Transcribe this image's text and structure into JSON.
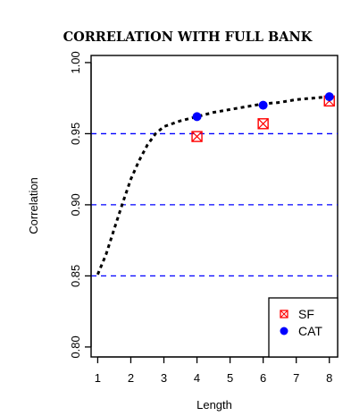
{
  "chart_data": {
    "type": "scatter",
    "title": "CORRELATION WITH FULL BANK",
    "xlabel": "Length",
    "ylabel": "Correlation",
    "xlim": [
      0.8,
      8.25
    ],
    "ylim": [
      0.793,
      1.005
    ],
    "x_ticks": [
      1,
      2,
      3,
      4,
      5,
      6,
      7,
      8
    ],
    "y_ticks": [
      0.8,
      0.85,
      0.9,
      0.95,
      1.0
    ],
    "y_tick_labels": [
      "0.80",
      "0.85",
      "0.90",
      "0.95",
      "1.00"
    ],
    "reference_lines": {
      "values": [
        0.85,
        0.9,
        0.95
      ],
      "color": "#0000ff",
      "style": "dashed"
    },
    "curve": {
      "style": "dotted",
      "color": "#000000",
      "x": [
        1.0,
        1.25,
        1.5,
        1.75,
        2.0,
        2.25,
        2.5,
        2.75,
        3.0,
        3.5,
        4.0,
        4.5,
        5.0,
        5.5,
        6.0,
        6.5,
        7.0,
        7.5,
        8.0
      ],
      "y": [
        0.851,
        0.865,
        0.883,
        0.901,
        0.918,
        0.931,
        0.942,
        0.95,
        0.955,
        0.959,
        0.962,
        0.965,
        0.967,
        0.969,
        0.971,
        0.972,
        0.974,
        0.975,
        0.976
      ]
    },
    "series": [
      {
        "name": "SF",
        "marker": "boxed-x",
        "color": "#ff0000",
        "x": [
          4,
          6,
          8
        ],
        "y": [
          0.948,
          0.957,
          0.973
        ]
      },
      {
        "name": "CAT",
        "marker": "filled-circle",
        "color": "#0000ff",
        "x": [
          4,
          6,
          8
        ],
        "y": [
          0.962,
          0.97,
          0.976
        ]
      }
    ],
    "legend": {
      "position": "bottom-right",
      "entries": [
        "SF",
        "CAT"
      ]
    },
    "grid": false
  }
}
